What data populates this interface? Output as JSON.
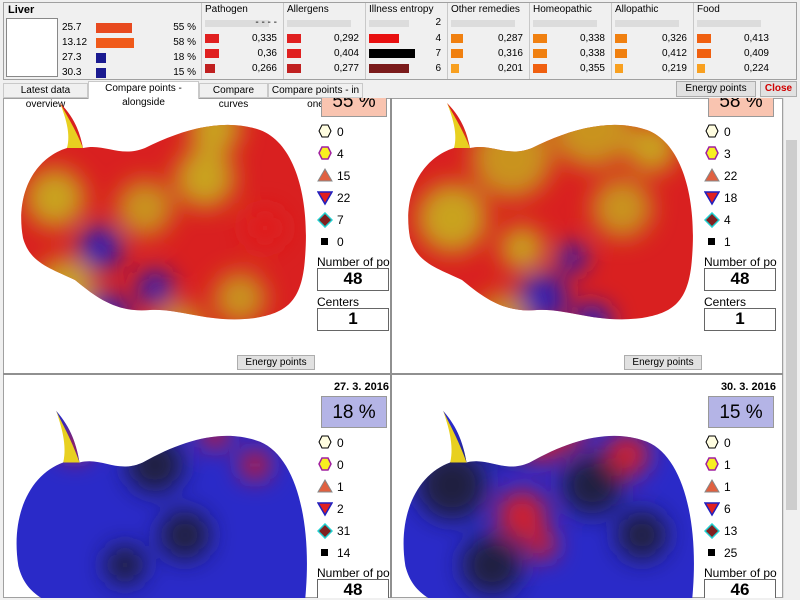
{
  "header": {
    "title": "Liver",
    "rows": [
      {
        "value": "25.7",
        "percent": "55 %",
        "color": "#e84a1f"
      },
      {
        "value": "13.12",
        "percent": "58 %",
        "color": "#f05a1a"
      },
      {
        "value": "27.3",
        "percent": "18 %",
        "color": "#1a1a90"
      },
      {
        "value": "30.3",
        "percent": "15 %",
        "color": "#1a1a90"
      }
    ]
  },
  "categories": [
    {
      "name": "Pathogen",
      "top": "- - - -",
      "rows": [
        "0,335",
        "0,36",
        "0,266"
      ]
    },
    {
      "name": "Allergens",
      "rows": [
        "0,292",
        "0,404",
        "0,277"
      ]
    },
    {
      "name": "Illness entropy",
      "top": "2",
      "rows": [
        "4",
        "7",
        "6"
      ]
    },
    {
      "name": "Other remedies",
      "rows": [
        "0,287",
        "0,316",
        "0,201"
      ]
    },
    {
      "name": "Homeopathic",
      "rows": [
        "0,338",
        "0,338",
        "0,355"
      ]
    },
    {
      "name": "Allopathic",
      "rows": [
        "0,326",
        "0,412",
        "0,219"
      ]
    },
    {
      "name": "Food",
      "rows": [
        "0,413",
        "0,409",
        "0,224"
      ]
    }
  ],
  "tabs": [
    "Latest data overview",
    "Compare points - alongside",
    "Compare curves",
    "Compare points - in one"
  ],
  "buttons": {
    "energy_points": "Energy points",
    "close": "Close"
  },
  "panels": [
    {
      "percent": "55 %",
      "badge_color": "#f9c4b0",
      "counts": [
        0,
        4,
        15,
        22,
        7,
        0
      ],
      "points_label": "Number of poi",
      "points": 48,
      "centers_label": "Centers",
      "centers": 1,
      "button": "Energy points"
    },
    {
      "percent": "58 %",
      "badge_color": "#f9c4b0",
      "counts": [
        0,
        3,
        22,
        18,
        4,
        1
      ],
      "points_label": "Number of poi",
      "points": 48,
      "centers_label": "Centers",
      "centers": 1,
      "button": "Energy points"
    },
    {
      "date": "27. 3. 2016",
      "percent": "18 %",
      "badge_color": "#b4b4e6",
      "counts": [
        0,
        0,
        1,
        2,
        31,
        14
      ],
      "points_label": "Number of poi",
      "points": 48
    },
    {
      "date": "30. 3. 2016",
      "percent": "15 %",
      "badge_color": "#b4b4e6",
      "counts": [
        0,
        1,
        1,
        6,
        13,
        25
      ],
      "points_label": "Number of poi",
      "points": 46
    }
  ]
}
